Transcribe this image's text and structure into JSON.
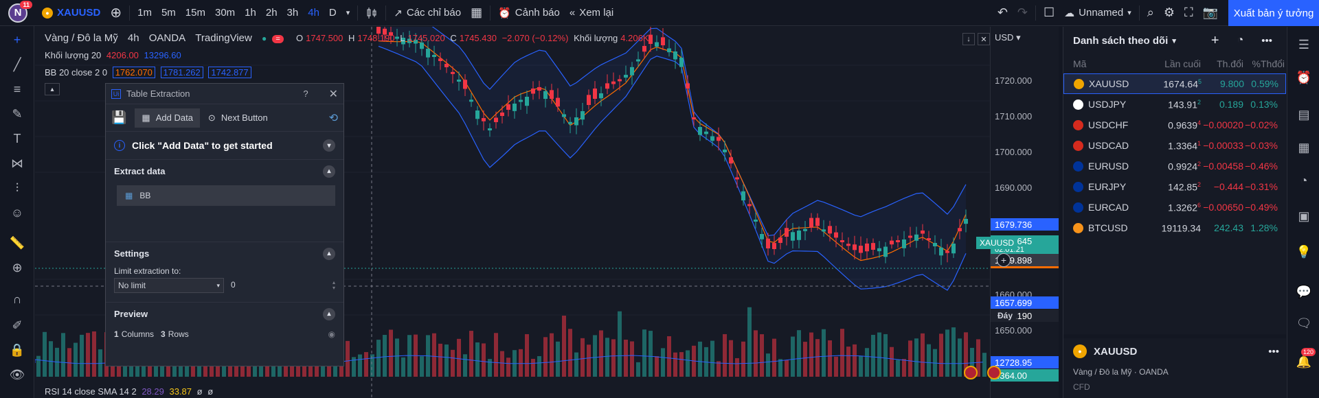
{
  "topbar": {
    "avatar_letter": "N",
    "avatar_badge": "11",
    "symbol": "XAUUSD",
    "timeframes": [
      "1m",
      "5m",
      "15m",
      "30m",
      "1h",
      "2h",
      "3h",
      "4h",
      "D"
    ],
    "active_timeframe": "4h",
    "indicators_label": "Các chỉ báo",
    "alert_label": "Cảnh báo",
    "replay_label": "Xem lại",
    "layout_name": "Unnamed",
    "publish_label": "Xuất bản ý tưởng"
  },
  "chart": {
    "title": "Vàng / Đô la Mỹ",
    "interval": "4h",
    "exchange": "OANDA",
    "source": "TradingView",
    "ohlc": {
      "o_label": "O",
      "o": "1747.500",
      "h_label": "H",
      "h": "1748.190",
      "l_label": "L",
      "l": "1745.020",
      "c_label": "C",
      "c": "1745.430",
      "change": "−2.070 (−0.12%)"
    },
    "volume_label": "Khối lượng",
    "volume_value": "4.206K",
    "vol_line_label": "Khối lượng 20",
    "vol_line_v1": "4206.00",
    "vol_line_v2": "13296.60",
    "bb_label": "BB 20 close 2 0",
    "bb_v1": "1762.070",
    "bb_v2": "1781.262",
    "bb_v3": "1742.877",
    "rsi_label": "RSI 14 close SMA 14 2",
    "rsi_v1": "28.29",
    "rsi_v2": "33.87",
    "rsi_v3": "ø",
    "rsi_v4": "ø",
    "currency": "USD",
    "price_ticks": [
      "1720.000",
      "1710.000",
      "1700.000",
      "1690.000",
      "1660.000",
      "1650.000"
    ],
    "tags": {
      "upper_bb": "1679.736",
      "symbol_tag": "XAUUSD",
      "last_price": "1674.645",
      "countdown": "02:01:21",
      "crosshair": "1669.898",
      "lower_bb": "1657.699",
      "low_label": "Đáy",
      "low_value": "1654.190",
      "vol_ma": "12728.95",
      "vol": "4364.00"
    }
  },
  "dialog": {
    "title": "Table Extraction",
    "help": "?",
    "add_data_label": "Add Data",
    "next_button_label": "Next Button",
    "info_text": "Click \"Add Data\" to get started",
    "extract_section": "Extract data",
    "extract_item": "BB",
    "settings_section": "Settings",
    "limit_label": "Limit extraction to:",
    "limit_select": "No limit",
    "limit_value": "0",
    "preview_section": "Preview",
    "preview_cols_n": "1",
    "preview_cols_label": "Columns",
    "preview_rows_n": "3",
    "preview_rows_label": "Rows"
  },
  "watchlist": {
    "title": "Danh sách theo dõi",
    "columns": [
      "Mã",
      "Lần cuối",
      "Th.đổi",
      "%Thđổi"
    ],
    "rows": [
      {
        "symbol": "XAUUSD",
        "last": "1674.64",
        "last_sup": "5",
        "change": "9.800",
        "pct": "0.59%",
        "dir": "pos",
        "flag": "#f0a500"
      },
      {
        "symbol": "USDJPY",
        "last": "143.91",
        "last_sup": "2",
        "change": "0.189",
        "pct": "0.13%",
        "dir": "pos",
        "flag": "#ffffff"
      },
      {
        "symbol": "USDCHF",
        "last": "0.9639",
        "last_sup": "4",
        "change": "−0.00020",
        "pct": "−0.02%",
        "dir": "neg",
        "flag": "#d52b1e"
      },
      {
        "symbol": "USDCAD",
        "last": "1.3364",
        "last_sup": "1",
        "change": "−0.00033",
        "pct": "−0.03%",
        "dir": "neg",
        "flag": "#d52b1e"
      },
      {
        "symbol": "EURUSD",
        "last": "0.9924",
        "last_sup": "2",
        "change": "−0.00458",
        "pct": "−0.46%",
        "dir": "neg",
        "flag": "#003399"
      },
      {
        "symbol": "EURJPY",
        "last": "142.85",
        "last_sup": "2",
        "change": "−0.444",
        "pct": "−0.31%",
        "dir": "neg",
        "flag": "#003399"
      },
      {
        "symbol": "EURCAD",
        "last": "1.3262",
        "last_sup": "6",
        "change": "−0.00650",
        "pct": "−0.49%",
        "dir": "neg",
        "flag": "#003399"
      },
      {
        "symbol": "BTCUSD",
        "last": "19119.34",
        "last_sup": "",
        "change": "242.43",
        "pct": "1.28%",
        "dir": "pos",
        "flag": "#f7931a"
      }
    ],
    "detail_symbol": "XAUUSD",
    "detail_name": "Vàng / Đô la Mỹ",
    "detail_exchange": "OANDA",
    "detail_type": "CFD"
  },
  "rightbar": {
    "notif_badge": "120"
  },
  "colors": {
    "accent": "#2962ff",
    "up": "#26a69a",
    "down": "#f23645",
    "bb": "#2962ff",
    "basis": "#ff6d00"
  }
}
